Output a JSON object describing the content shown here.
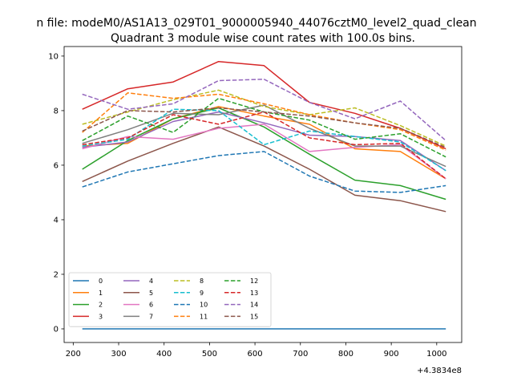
{
  "suptitle": "n file: modeM0/AS1A13_029T01_9000005940_44076cztM0_level2_quad_clean",
  "chart_data": {
    "type": "line",
    "title": "Quadrant 3 module wise count rates with 100.0s bins.",
    "xlabel": "",
    "ylabel": "",
    "x_offset_label": "+4.3834e8",
    "xlim": [
      180,
      1055
    ],
    "ylim": [
      -0.5,
      10.35
    ],
    "xticks": [
      200,
      300,
      400,
      500,
      600,
      700,
      800,
      900,
      1000
    ],
    "xtick_labels": [
      "200",
      "300",
      "400",
      "500",
      "600",
      "700",
      "800",
      "900",
      "1000"
    ],
    "yticks": [
      0,
      2,
      4,
      6,
      8,
      10
    ],
    "ytick_labels": [
      "0",
      "2",
      "4",
      "6",
      "8",
      "10"
    ],
    "grid": false,
    "legend_position": "lower-left",
    "legend_columns": 4,
    "x": [
      220,
      320,
      420,
      520,
      620,
      720,
      820,
      920,
      1020
    ],
    "series": [
      {
        "name": "0",
        "color": "#1f77b4",
        "style": "solid",
        "values": [
          0,
          0,
          0,
          0,
          0,
          0,
          0,
          0,
          0
        ]
      },
      {
        "name": "1",
        "color": "#ff7f0e",
        "style": "solid",
        "values": [
          6.7,
          6.8,
          7.7,
          8.15,
          7.8,
          7.5,
          6.6,
          6.5,
          5.5
        ]
      },
      {
        "name": "2",
        "color": "#2ca02c",
        "style": "solid",
        "values": [
          5.85,
          6.9,
          7.7,
          8.1,
          7.4,
          6.4,
          5.45,
          5.25,
          4.75
        ]
      },
      {
        "name": "3",
        "color": "#d62728",
        "style": "solid",
        "values": [
          8.05,
          8.8,
          9.05,
          9.8,
          9.65,
          8.3,
          7.9,
          7.35,
          6.6
        ]
      },
      {
        "name": "4",
        "color": "#9467bd",
        "style": "solid",
        "values": [
          6.65,
          6.85,
          7.6,
          7.95,
          7.55,
          7.1,
          7.05,
          6.9,
          5.8
        ]
      },
      {
        "name": "5",
        "color": "#8c564b",
        "style": "solid",
        "values": [
          5.4,
          6.15,
          6.8,
          7.4,
          6.7,
          5.85,
          4.9,
          4.7,
          4.3
        ]
      },
      {
        "name": "6",
        "color": "#e377c2",
        "style": "solid",
        "values": [
          6.6,
          7.05,
          6.95,
          7.35,
          7.5,
          6.5,
          6.65,
          6.75,
          5.5
        ]
      },
      {
        "name": "7",
        "color": "#7f7f7f",
        "style": "solid",
        "values": [
          6.8,
          7.3,
          7.9,
          7.85,
          8.2,
          7.35,
          6.7,
          6.7,
          5.95
        ]
      },
      {
        "name": "8",
        "color": "#bcbd22",
        "style": "dashed",
        "values": [
          7.5,
          7.95,
          8.4,
          8.75,
          8.15,
          7.85,
          8.1,
          7.45,
          6.7
        ]
      },
      {
        "name": "9",
        "color": "#17becf",
        "style": "dashed",
        "values": [
          6.7,
          6.95,
          8.05,
          8.0,
          6.75,
          7.25,
          7.05,
          6.85,
          5.8
        ]
      },
      {
        "name": "10",
        "color": "#1f77b4",
        "style": "dashed",
        "values": [
          5.2,
          5.75,
          6.05,
          6.35,
          6.5,
          5.6,
          5.05,
          5.0,
          5.25
        ]
      },
      {
        "name": "11",
        "color": "#ff7f0e",
        "style": "dashed",
        "values": [
          7.2,
          8.65,
          8.45,
          8.6,
          8.25,
          7.85,
          7.55,
          7.3,
          6.55
        ]
      },
      {
        "name": "12",
        "color": "#2ca02c",
        "style": "dashed",
        "values": [
          6.9,
          7.8,
          7.2,
          8.45,
          7.95,
          7.65,
          6.95,
          7.15,
          6.3
        ]
      },
      {
        "name": "13",
        "color": "#d62728",
        "style": "dashed",
        "values": [
          6.75,
          7.0,
          7.85,
          7.5,
          7.95,
          7.0,
          6.75,
          6.8,
          5.5
        ]
      },
      {
        "name": "14",
        "color": "#9467bd",
        "style": "dashed",
        "values": [
          8.6,
          8.05,
          8.25,
          9.1,
          9.15,
          8.3,
          7.7,
          8.35,
          6.9
        ]
      },
      {
        "name": "15",
        "color": "#8c564b",
        "style": "dashed",
        "values": [
          7.25,
          8.0,
          7.95,
          8.1,
          7.95,
          7.8,
          7.55,
          7.35,
          6.65
        ]
      }
    ]
  }
}
